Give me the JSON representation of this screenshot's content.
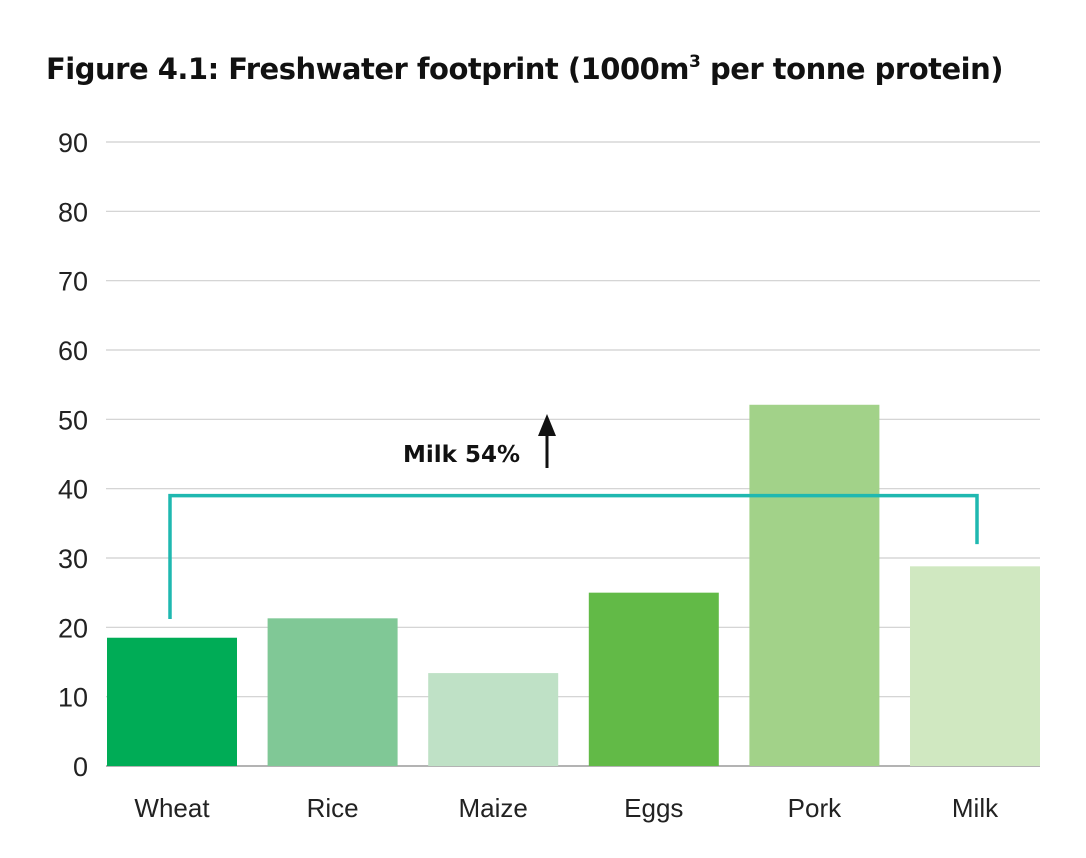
{
  "chart_data": {
    "type": "bar",
    "title_main": "Figure 4.1: Freshwater footprint (1000m",
    "title_sup": "3",
    "title_end": " per tonne protein)",
    "xlabel": "",
    "ylabel": "",
    "ylim": [
      0,
      90
    ],
    "yticks": [
      0,
      10,
      20,
      30,
      40,
      50,
      60,
      70,
      80,
      90
    ],
    "grid": true,
    "categories": [
      "Wheat",
      "Rice",
      "Maize",
      "Eggs",
      "Pork",
      "Milk"
    ],
    "values": [
      18.5,
      21.3,
      13.4,
      25.0,
      52.1,
      28.8
    ],
    "colors": [
      "#00ac56",
      "#80c896",
      "#bfe1c6",
      "#62ba47",
      "#a2d289",
      "#d0e8c1"
    ],
    "annotation": {
      "label": "Milk 54%",
      "bracket_level": 39,
      "from_category": "Wheat",
      "to_category": "Milk",
      "left_end_value": 21.2,
      "right_end_value": 32,
      "color": "#1fb8b0",
      "arrow": "up"
    }
  }
}
